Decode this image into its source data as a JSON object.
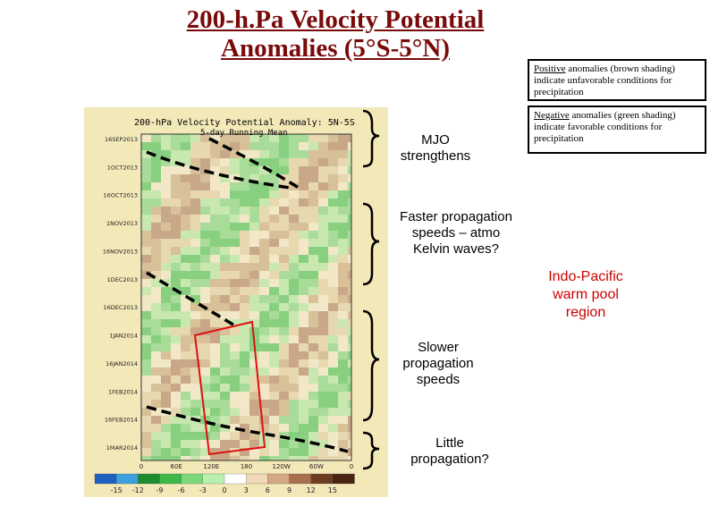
{
  "title": {
    "line1": "200-h.Pa Velocity Potential",
    "line2": "Anomalies (5°S-5°N)"
  },
  "legend_positive": {
    "word": "Positive",
    "rest": " anomalies (brown shading) indicate unfavorable conditions for precipitation"
  },
  "legend_negative": {
    "word": "Negative",
    "rest": " anomalies (green shading) indicate favorable conditions for precipitation"
  },
  "annotations": [
    {
      "text": "MJO strengthens"
    },
    {
      "text": "Faster propagation speeds – atmo Kelvin waves?"
    },
    {
      "text": "Slower propagation speeds"
    },
    {
      "text": "Little propagation?"
    }
  ],
  "warm_pool_label": "Indo-Pacific warm pool region",
  "figure": {
    "title": "200-hPa Velocity Potential Anomaly: 5N-5S",
    "subtitle": "5-day Running Mean",
    "y_labels": [
      "16SEP2013",
      "1OCT2013",
      "16OCT2013",
      "1NOV2013",
      "16NOV2013",
      "1DEC2013",
      "16DEC2013",
      "1JAN2014",
      "16JAN2014",
      "1FEB2014",
      "16FEB2014",
      "1MAR2014"
    ],
    "x_labels": [
      "0",
      "60E",
      "120E",
      "180",
      "120W",
      "60W",
      "0"
    ],
    "colorbar_labels": [
      "-15",
      "-12",
      "-9",
      "-6",
      "-3",
      "0",
      "3",
      "6",
      "9",
      "12",
      "15"
    ],
    "colorbar_colors": [
      "#1f5fbf",
      "#3ca0e0",
      "#1e8c2e",
      "#3fb84a",
      "#7ed87a",
      "#b8f0b0",
      "#ffffff",
      "#f0d8b8",
      "#d4a880",
      "#a8704a",
      "#6e3c20",
      "#4a2410"
    ]
  },
  "colors": {
    "title": "#7a0a0a",
    "warm_pool_box": "#e01010",
    "dashed_line": "#000000"
  }
}
